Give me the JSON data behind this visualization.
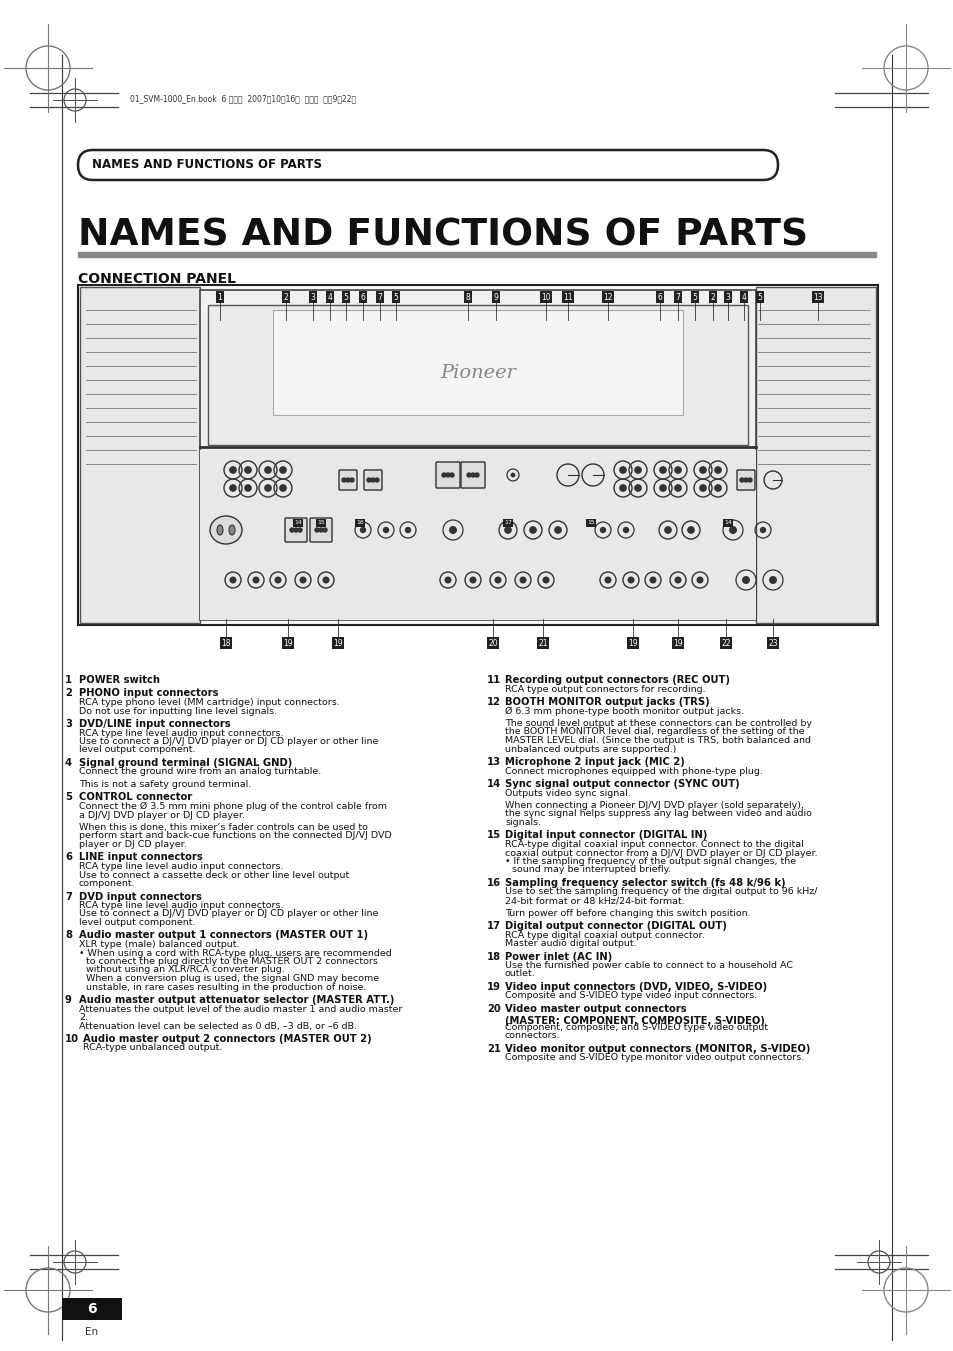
{
  "bg_color": "#ffffff",
  "header_text": "NAMES AND FUNCTIONS OF PARTS",
  "main_title": "NAMES AND FUNCTIONS OF PARTS",
  "section_title": "CONNECTION PANEL",
  "top_bar_text": "01_SVM-1000_En.book  6 ページ  2007年10月16日  火曜日  午前9時22分",
  "page_number": "6",
  "page_sub": "En",
  "left_col": [
    {
      "num": "1",
      "bold": "POWER switch",
      "text": ""
    },
    {
      "num": "2",
      "bold": "PHONO input connectors",
      "text": "RCA type phono level (MM cartridge) input connectors.\nDo not use for inputting line level signals."
    },
    {
      "num": "3",
      "bold": "DVD/LINE input connectors",
      "text": "RCA type line level audio input connectors.\nUse to connect a DJ/VJ DVD player or DJ CD player or other line\nlevel output component."
    },
    {
      "num": "4",
      "bold": "Signal ground terminal (SIGNAL GND)",
      "text": "Connect the ground wire from an analog turntable.\n\nThis is not a safety ground terminal."
    },
    {
      "num": "5",
      "bold": "CONTROL connector",
      "text": "Connect the Ø 3.5 mm mini phone plug of the control cable from\na DJ/VJ DVD player or DJ CD player.\n\nWhen this is done, this mixer’s fader controls can be used to\nperform start and back-cue functions on the connected DJ/VJ DVD\nplayer or DJ CD player."
    },
    {
      "num": "6",
      "bold": "LINE input connectors",
      "text": "RCA type line level audio input connectors.\nUse to connect a cassette deck or other line level output\ncomponent."
    },
    {
      "num": "7",
      "bold": "DVD input connectors",
      "text": "RCA type line level audio input connectors.\nUse to connect a DJ/VJ DVD player or DJ CD player or other line\nlevel output component."
    },
    {
      "num": "8",
      "bold": "Audio master output 1 connectors (MASTER OUT 1)",
      "text": "XLR type (male) balanced output.\n• When using a cord with RCA-type plug, users are recommended\n   to connect the plug directly to the MASTER OUT 2 connectors\n   without using an XLR/RCA converter plug.\n   When a conversion plug is used, the signal GND may become\n   unstable, in rare cases resulting in the production of noise."
    },
    {
      "num": "9",
      "bold": "Audio master output attenuator selector (MASTER ATT.)",
      "text": "Attenuates the output level of the audio master 1 and audio master\n2.\nAttenuation level can be selected as 0 dB, –3 dB, or –6 dB."
    },
    {
      "num": "10",
      "bold": "Audio master output 2 connectors (MASTER OUT 2)",
      "text": "RCA-type unbalanced output."
    }
  ],
  "right_col": [
    {
      "num": "11",
      "bold": "Recording output connectors (REC OUT)",
      "text": "RCA type output connectors for recording."
    },
    {
      "num": "12",
      "bold": "BOOTH MONITOR output jacks (TRS)",
      "text": "Ø 6.3 mm phone-type booth monitor output jacks.\n\nThe sound level output at these connectors can be controlled by\nthe BOOTH MONITOR level dial, regardless of the setting of the\nMASTER LEVEL dial. (Since the output is TRS, both balanced and\nunbalanced outputs are supported.)"
    },
    {
      "num": "13",
      "bold": "Microphone 2 input jack (MIC 2)",
      "text": "Connect microphones equipped with phone-type plug."
    },
    {
      "num": "14",
      "bold": "Sync signal output connector (SYNC OUT)",
      "text": "Outputs video sync signal.\n\nWhen connecting a Pioneer DJ/VJ DVD player (sold separately),\nthe sync signal helps suppress any lag between video and audio\nsignals."
    },
    {
      "num": "15",
      "bold": "Digital input connector (DIGITAL IN)",
      "text": "RCA-type digital coaxial input connector. Connect to the digital\ncoaxial output connector from a DJ/VJ DVD player or DJ CD player.\n• If the sampling frequency of the output signal changes, the\n   sound may be interrupted briefly."
    },
    {
      "num": "16",
      "bold": "Sampling frequency selector switch (fs 48 k/96 k)",
      "text": "Use to set the sampling frequency of the digital output to 96 kHz/\n24-bit format or 48 kHz/24-bit format.\n\nTurn power off before changing this switch position."
    },
    {
      "num": "17",
      "bold": "Digital output connector (DIGITAL OUT)",
      "text": "RCA type digital coaxial output connector.\nMaster audio digital output."
    },
    {
      "num": "18",
      "bold": "Power inlet (AC IN)",
      "text": "Use the furnished power cable to connect to a household AC\noutlet."
    },
    {
      "num": "19",
      "bold": "Video input connectors (DVD, VIDEO, S-VIDEO)",
      "text": "Composite and S-VIDEO type video input connectors."
    },
    {
      "num": "20",
      "bold": "Video master output connectors\n(MASTER: COMPONENT, COMPOSITE, S-VIDEO)",
      "text": "Component, composite, and S-VIDEO type video output\nconnectors."
    },
    {
      "num": "21",
      "bold": "Video monitor output connectors (MONITOR, S-VIDEO)",
      "text": "Composite and S-VIDEO type monitor video output connectors."
    }
  ]
}
